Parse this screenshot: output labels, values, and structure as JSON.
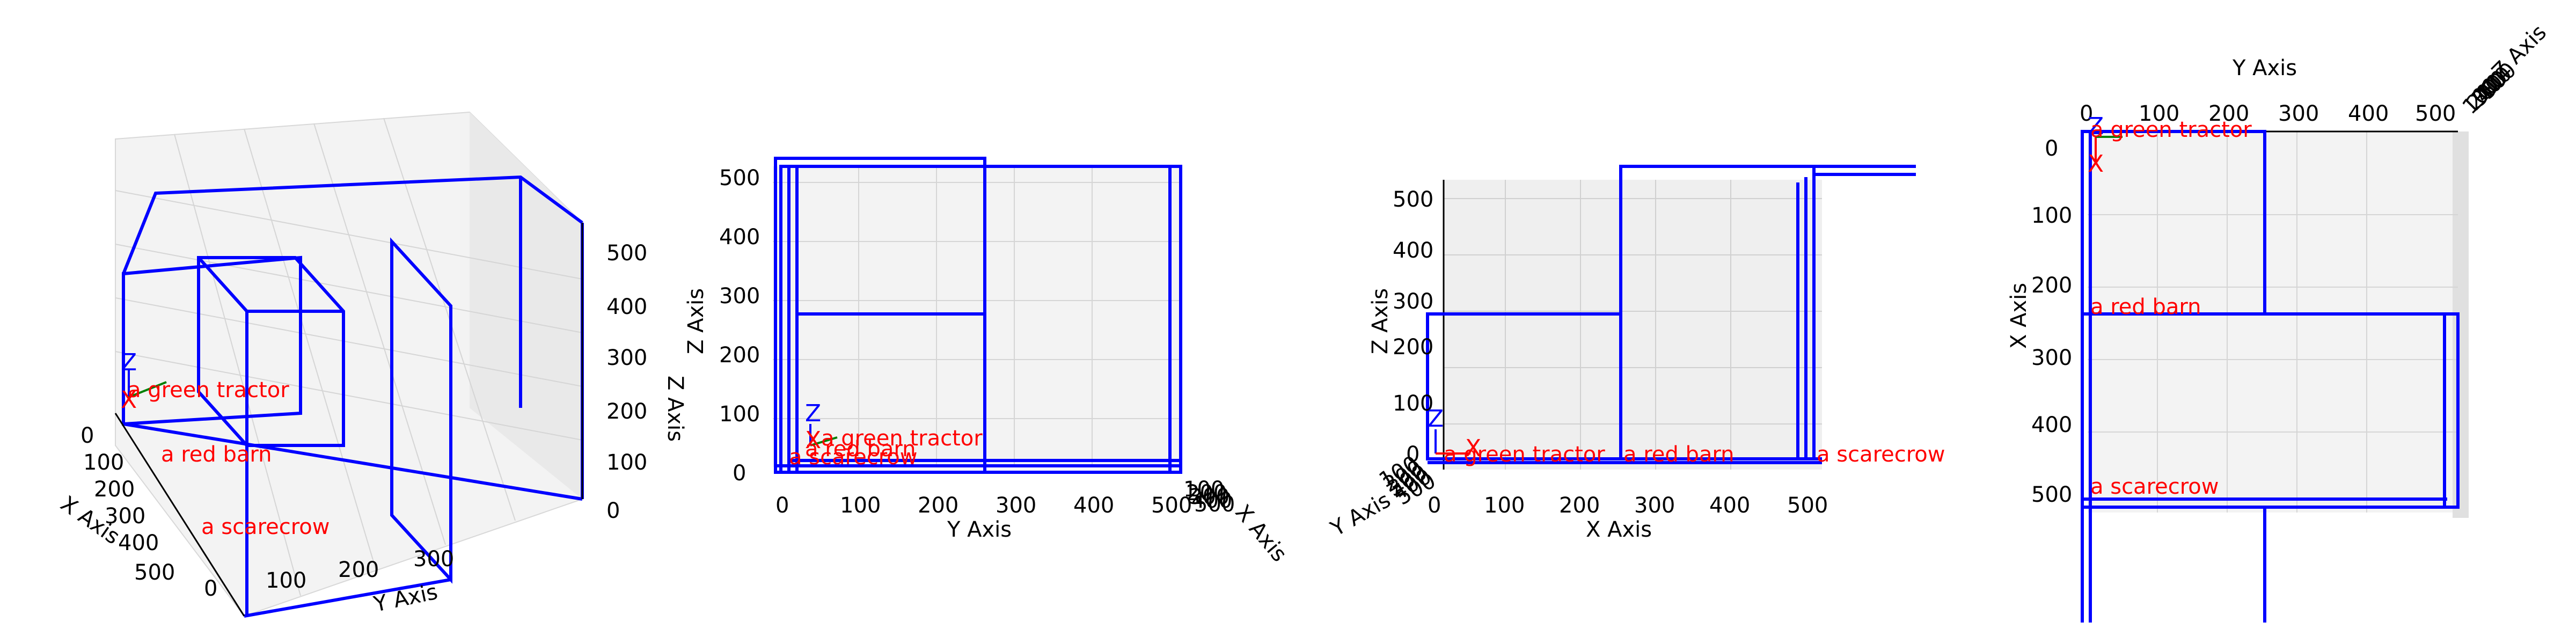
{
  "chart_data": [
    {
      "type": "3d-wireframe",
      "view": "perspective",
      "axes": {
        "x": {
          "label": "X Axis",
          "ticks": [
            "0",
            "100",
            "200",
            "300",
            "400",
            "500"
          ]
        },
        "y": {
          "label": "Y Axis",
          "ticks": [
            "0",
            "100",
            "200",
            "300"
          ]
        },
        "z": {
          "label": "Z Axis",
          "ticks": [
            "0",
            "100",
            "200",
            "300",
            "400",
            "500"
          ]
        }
      },
      "labels": [
        "a green tractor",
        "a red barn",
        "a scarecrow"
      ],
      "gizmo": {
        "x": "X",
        "z": "Z"
      }
    },
    {
      "type": "3d-wireframe",
      "view": "front (Y-Z)",
      "axes": {
        "y": {
          "label": "Y Axis",
          "ticks": [
            "0",
            "100",
            "200",
            "300",
            "400",
            "500"
          ]
        },
        "z": {
          "label": "Z Axis",
          "ticks": [
            "0",
            "100",
            "200",
            "300",
            "400",
            "500"
          ]
        },
        "x": {
          "label": "X Axis",
          "ticks": [
            "100",
            "200",
            "300",
            "400",
            "500"
          ]
        }
      },
      "labels": [
        "a green tractor",
        "a red barn",
        "a scarecrow"
      ],
      "gizmo": {
        "x": "X",
        "z": "Z"
      }
    },
    {
      "type": "3d-wireframe",
      "view": "side (X-Z)",
      "axes": {
        "x": {
          "label": "X Axis",
          "ticks": [
            "0",
            "100",
            "200",
            "300",
            "400",
            "500"
          ]
        },
        "z": {
          "label": "Z Axis",
          "ticks": [
            "0",
            "100",
            "200",
            "300",
            "400",
            "500"
          ]
        },
        "y": {
          "label": "Y Axis",
          "ticks": [
            "100",
            "200",
            "300",
            "400",
            "500"
          ]
        }
      },
      "labels": [
        "a green tractor",
        "a red barn",
        "a scarecrow"
      ],
      "gizmo": {
        "x": "X",
        "z": "Z"
      }
    },
    {
      "type": "3d-wireframe",
      "view": "top (X-Y)",
      "axes": {
        "y": {
          "label": "Y Axis",
          "ticks": [
            "0",
            "100",
            "200",
            "300",
            "400",
            "500"
          ]
        },
        "x": {
          "label": "X Axis",
          "ticks": [
            "0",
            "100",
            "200",
            "300",
            "400",
            "500"
          ]
        },
        "z": {
          "label": "Z Axis",
          "ticks": [
            "100",
            "200",
            "300",
            "400",
            "500"
          ]
        }
      },
      "labels": [
        "a green tractor",
        "a red barn",
        "a scarecrow"
      ],
      "gizmo": {
        "x": "X",
        "z": "Z"
      }
    }
  ],
  "colors": {
    "wireframe": "#0000ff",
    "labels": "#ff0000",
    "gizmo_x": "#ff0000",
    "gizmo_y": "#008000",
    "gizmo_z": "#0000ff",
    "pane": "#f2f2f2",
    "grid": "#d0d0d0"
  }
}
